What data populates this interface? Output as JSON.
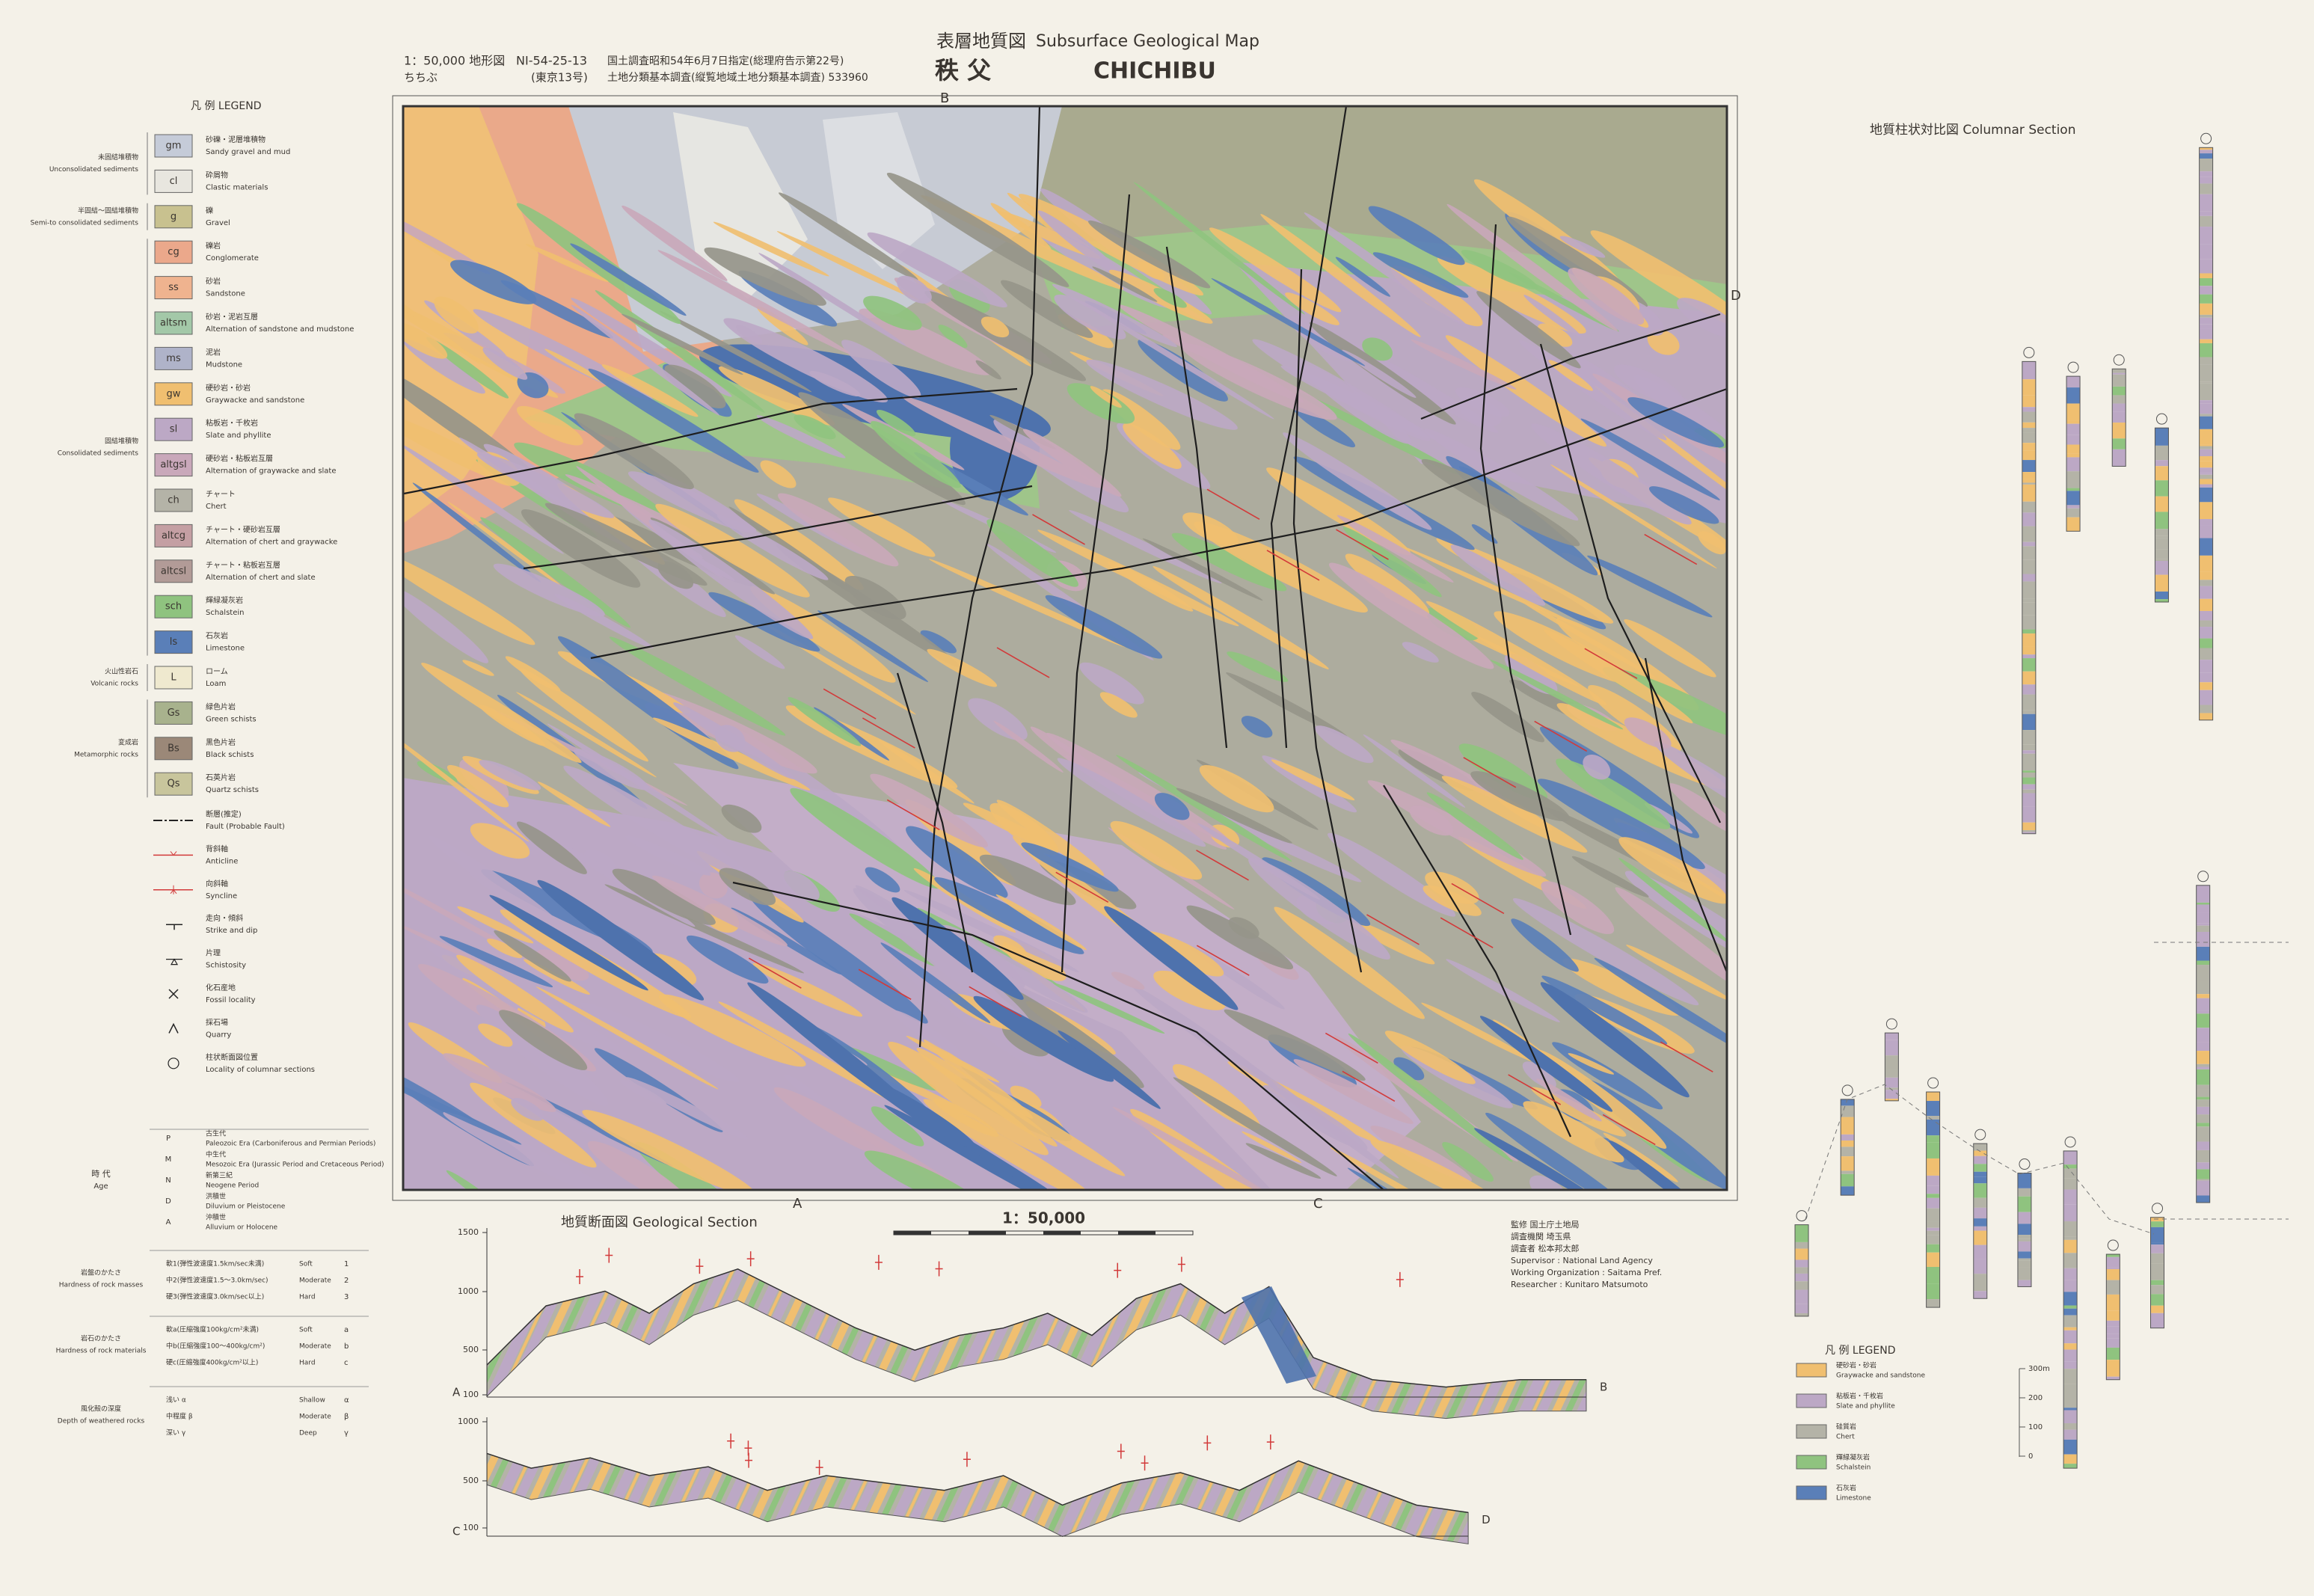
{
  "header": {
    "scale_map": "1：50,000 地形図",
    "sheet": "NI-54-25-13",
    "sheet_sub": "(東京13号)",
    "reading": "ちちぶ",
    "note1": "国土調査昭和54年6月7日指定(総理府告示第22号)",
    "note2": "土地分類基本調査(縦覧地域土地分類基本調査) 533960",
    "title_jp": "表層地質図",
    "title_en": "Subsurface Geological Map",
    "name_jp": "秩 父",
    "name_en": "CHICHIBU"
  },
  "map": {
    "edge_top": "B",
    "edge_bottom_left": "A",
    "edge_bottom_right": "C",
    "edge_right": "D"
  },
  "legend": {
    "title": "凡 例 LEGEND",
    "groups": [
      {
        "jp": "未固結堆積物",
        "en": "Unconsolidated sediments",
        "items": [
          {
            "code": "gm",
            "jp": "砂礫・泥層堆積物",
            "en": "Sandy gravel and mud",
            "color": "#c5cbd8"
          },
          {
            "code": "cl",
            "jp": "砕屑物",
            "en": "Clastic materials",
            "color": "#e8e6df"
          }
        ]
      },
      {
        "jp": "半固結～固結堆積物",
        "en": "Semi-to consolidated sediments",
        "items": [
          {
            "code": "g",
            "jp": "礫",
            "en": "Gravel",
            "color": "#c8c18f"
          }
        ]
      },
      {
        "jp": "固結堆積物",
        "en": "Consolidated sediments",
        "items": [
          {
            "code": "cg",
            "jp": "礫岩",
            "en": "Conglomerate",
            "color": "#eba88b"
          },
          {
            "code": "ss",
            "jp": "砂岩",
            "en": "Sandstone",
            "color": "#efb38f"
          },
          {
            "code": "altsm",
            "jp": "砂岩・泥岩互層",
            "en": "Alternation of sandstone and mudstone",
            "color": "#a3c8a8"
          },
          {
            "code": "ms",
            "jp": "泥岩",
            "en": "Mudstone",
            "color": "#afb3c9"
          },
          {
            "code": "gw",
            "jp": "硬砂岩・砂岩",
            "en": "Graywacke and sandstone",
            "color": "#f0bf70"
          },
          {
            "code": "sl",
            "jp": "粘板岩・千枚岩",
            "en": "Slate and phyllite",
            "color": "#bca8c5"
          },
          {
            "code": "altgsl",
            "jp": "硬砂岩・粘板岩互層",
            "en": "Alternation of graywacke and slate",
            "color": "#c9a8ba"
          },
          {
            "code": "ch",
            "jp": "チャート",
            "en": "Chert",
            "color": "#b4b3a7"
          },
          {
            "code": "altcg",
            "jp": "チャート・硬砂岩互層",
            "en": "Alternation of chert and graywacke",
            "color": "#c49fa3"
          },
          {
            "code": "altcsl",
            "jp": "チャート・粘板岩互層",
            "en": "Alternation of chert and slate",
            "color": "#b29b97"
          },
          {
            "code": "sch",
            "jp": "輝緑凝灰岩",
            "en": "Schalstein",
            "color": "#8fc37f"
          },
          {
            "code": "ls",
            "jp": "石灰岩",
            "en": "Limestone",
            "color": "#5a7fb8"
          }
        ]
      },
      {
        "jp": "火山性岩石",
        "en": "Volcanic rocks",
        "items": [
          {
            "code": "L",
            "jp": "ローム",
            "en": "Loam",
            "color": "#efe9cf"
          }
        ]
      },
      {
        "jp": "変成岩",
        "en": "Metamorphic rocks",
        "items": [
          {
            "code": "Gs",
            "jp": "緑色片岩",
            "en": "Green schists",
            "color": "#a8b28d"
          },
          {
            "code": "Bs",
            "jp": "黒色片岩",
            "en": "Black schists",
            "color": "#9b8878"
          },
          {
            "code": "Qs",
            "jp": "石英片岩",
            "en": "Quartz schists",
            "color": "#c8c59c"
          }
        ]
      }
    ],
    "symbols": [
      {
        "jp": "断層(推定)",
        "en": "Fault (Probable Fault)"
      },
      {
        "jp": "背斜軸",
        "en": "Anticline"
      },
      {
        "jp": "向斜軸",
        "en": "Syncline"
      },
      {
        "jp": "走向・傾斜",
        "en": "Strike and dip"
      },
      {
        "jp": "片理",
        "en": "Schistosity"
      },
      {
        "jp": "化石産地",
        "en": "Fossil locality"
      },
      {
        "jp": "採石場",
        "en": "Quarry"
      },
      {
        "jp": "柱状断面図位置",
        "en": "Locality of columnar sections"
      }
    ]
  },
  "age": {
    "label_jp": "時 代",
    "label_en": "Age",
    "items": [
      {
        "code": "P",
        "jp": "古生代",
        "en": "Paleozoic Era (Carboniferous and Permian Periods)"
      },
      {
        "code": "M",
        "jp": "中生代",
        "en": "Mesozoic Era (Jurassic Period and Cretaceous Period)"
      },
      {
        "code": "N",
        "jp": "新第三紀",
        "en": "Neogene Period"
      },
      {
        "code": "D",
        "jp": "洪積世",
        "en": "Diluvium or Pleistocene"
      },
      {
        "code": "A",
        "jp": "沖積世",
        "en": "Alluvium or Holocene"
      }
    ]
  },
  "hardness": [
    {
      "label_jp": "岩盤のかたさ",
      "label_en": "Hardness of rock masses",
      "items": [
        {
          "jp": "軟1(弾性波速度1.5km/sec未満)",
          "en": "Soft",
          "code": "1"
        },
        {
          "jp": "中2(弾性波速度1.5～3.0km/sec)",
          "en": "Moderate",
          "code": "2"
        },
        {
          "jp": "硬3(弾性波速度3.0km/sec以上)",
          "en": "Hard",
          "code": "3"
        }
      ]
    },
    {
      "label_jp": "岩石のかたさ",
      "label_en": "Hardness of rock materials",
      "items": [
        {
          "jp": "軟a(圧縮強度100kg/cm²未満)",
          "en": "Soft",
          "code": "a"
        },
        {
          "jp": "中b(圧縮強度100～400kg/cm²)",
          "en": "Moderate",
          "code": "b"
        },
        {
          "jp": "硬c(圧縮強度400kg/cm²以上)",
          "en": "Hard",
          "code": "c"
        }
      ]
    },
    {
      "label_jp": "風化殻の深度",
      "label_en": "Depth of weathered rocks",
      "items": [
        {
          "jp": "浅い α",
          "en": "Shallow",
          "code": "α"
        },
        {
          "jp": "中程度 β",
          "en": "Moderate",
          "code": "β"
        },
        {
          "jp": "深い γ",
          "en": "Deep",
          "code": "γ"
        }
      ]
    }
  ],
  "section": {
    "title": "地質断面図 Geological Section",
    "scale": "1：50,000",
    "upper_elev": [
      "1500",
      "1000",
      "500",
      "100"
    ],
    "lower_elev": [
      "1000",
      "500",
      "100"
    ],
    "a": "A",
    "b": "B",
    "c": "C",
    "d": "D"
  },
  "credits": [
    "監修 国土庁土地局",
    "調査機関 埼玉県",
    "調査者 松本邦太郎",
    "Supervisor : National Land Agency",
    "Working Organization : Saitama Pref.",
    "Researcher : Kunitaro Matsumoto"
  ],
  "columnar": {
    "title": "地質柱状対比図 Columnar Section",
    "legend_title": "凡 例 LEGEND",
    "items": [
      {
        "jp": "硬砂岩・砂岩",
        "en": "Graywacke and sandstone",
        "color": "#f0bf70"
      },
      {
        "jp": "粘板岩・千枚岩",
        "en": "Slate and phyllite",
        "color": "#bca8c5"
      },
      {
        "jp": "硅質岩",
        "en": "Chert",
        "color": "#b4b3a7"
      },
      {
        "jp": "輝緑凝灰岩",
        "en": "Schalstein",
        "color": "#8fc37f"
      },
      {
        "jp": "石灰岩",
        "en": "Limestone",
        "color": "#5a7fb8"
      }
    ],
    "scale": [
      "300m",
      "200",
      "100",
      "0"
    ]
  }
}
